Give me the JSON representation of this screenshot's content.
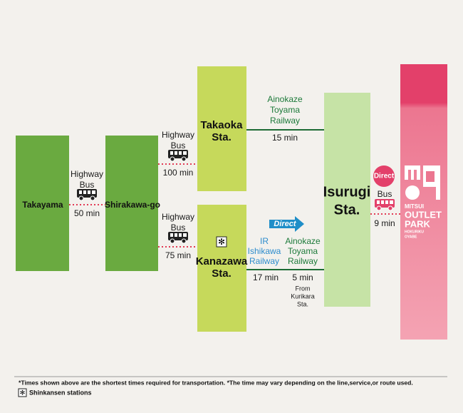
{
  "nodes": [
    {
      "label": [
        "Takayama"
      ]
    },
    {
      "label": [
        "Shirakawa-go"
      ]
    },
    {
      "label": [
        "Takaoka",
        "Sta."
      ]
    },
    {
      "label": [
        "Kanazawa",
        "Sta."
      ]
    },
    {
      "label": [
        "Isurugi",
        "Sta."
      ]
    }
  ],
  "links": [
    {
      "mode": [
        "Highway",
        "Bus"
      ],
      "time": "50 min"
    },
    {
      "mode": [
        "Highway",
        "Bus"
      ],
      "time": "100 min"
    },
    {
      "mode": [
        "Highway",
        "Bus"
      ],
      "time": "75 min"
    },
    {
      "mode": [
        "Ainokaze",
        "Toyama",
        "Railway"
      ],
      "time": "15 min"
    },
    {
      "mode": [
        "IR",
        "Ishikawa",
        "Railway"
      ],
      "time": "17 min"
    },
    {
      "mode": [
        "Ainokaze",
        "Toyama",
        "Railway"
      ],
      "time": "5 min",
      "note": [
        "From",
        "Kurikara",
        "Sta."
      ]
    },
    {
      "badge": "Direct",
      "mode": [
        "Bus"
      ],
      "time": "9 min"
    }
  ],
  "direct_arrow": "Direct",
  "destination": {
    "lines": [
      "MITSUI",
      "OUTLET",
      "PARK",
      "HOKURIKU",
      "OYABE"
    ]
  },
  "footer": {
    "note": "*Times shown above are the shortest times required for transportation.  *The time may vary depending on the line,service,or route used.",
    "legend_symbol": "✻",
    "legend": "Shinkansen stations"
  }
}
